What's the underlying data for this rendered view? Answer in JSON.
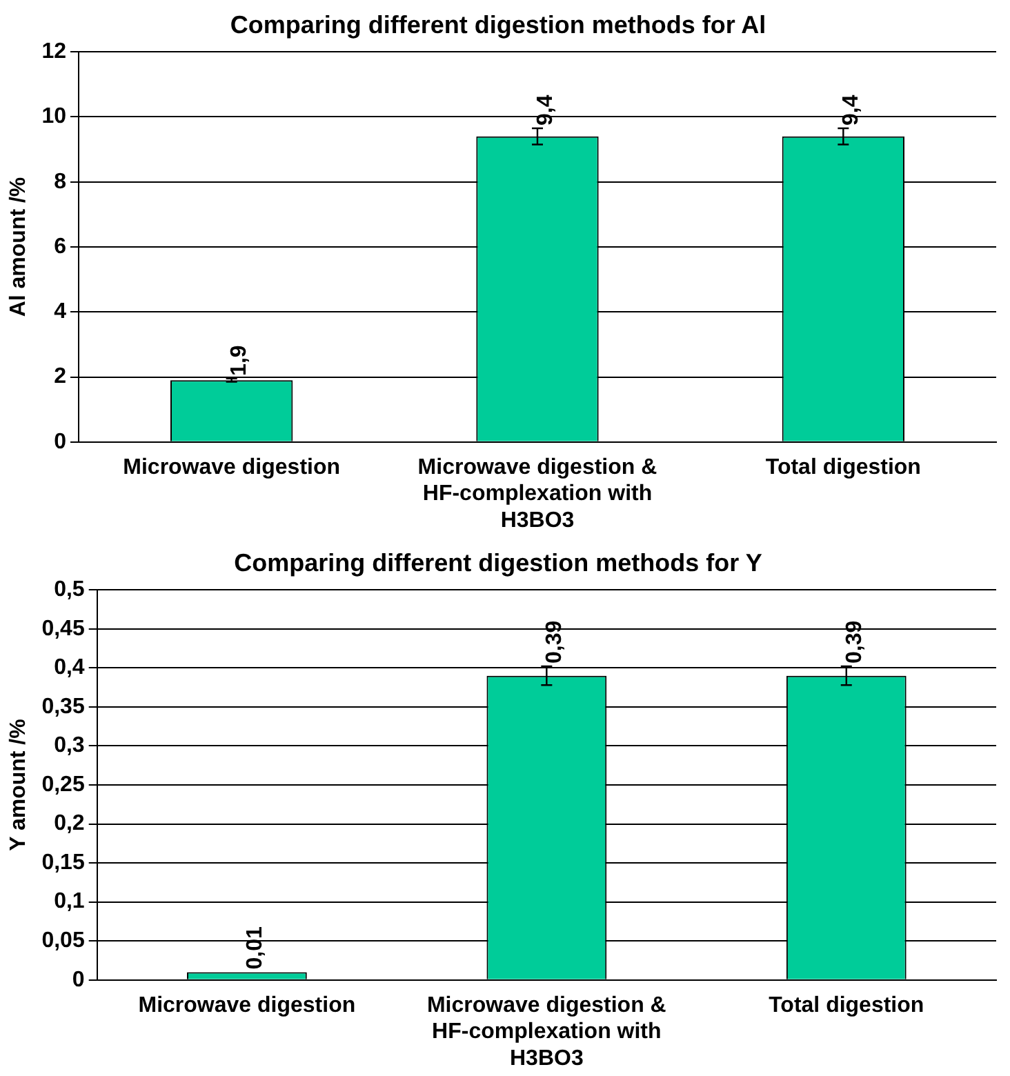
{
  "chart_data": [
    {
      "type": "bar",
      "title": "Comparing different digestion methods for Al",
      "ylabel": "Al amount /%",
      "categories": [
        "Microwave digestion",
        "Microwave digestion & HF-complexation with H3BO3",
        "Total digestion"
      ],
      "values": [
        1.9,
        9.4,
        9.4
      ],
      "errors": [
        0.05,
        0.25,
        0.25
      ],
      "value_labels": [
        "1,9",
        "9,4",
        "9,4"
      ],
      "color": "#00cc99",
      "ylim": [
        0,
        12
      ],
      "yticks": [
        0,
        2,
        4,
        6,
        8,
        10,
        12
      ],
      "grid": "y"
    },
    {
      "type": "bar",
      "title": "Comparing different digestion methods for Y",
      "ylabel": "Y amount /%",
      "categories": [
        "Microwave digestion",
        "Microwave digestion & HF-complexation with H3BO3",
        "Total digestion"
      ],
      "values": [
        0.01,
        0.39,
        0.39
      ],
      "errors": [
        null,
        0.012,
        0.012
      ],
      "value_labels": [
        "0,01",
        "0,39",
        "0,39"
      ],
      "color": "#00cc99",
      "ylim": [
        0,
        0.5
      ],
      "yticks": [
        0,
        {
          "value": 0.05,
          "label": "0,05"
        },
        {
          "value": 0.1,
          "label": "0,1"
        },
        {
          "value": 0.15,
          "label": "0,15"
        },
        {
          "value": 0.2,
          "label": "0,2"
        },
        {
          "value": 0.25,
          "label": "0,25"
        },
        {
          "value": 0.3,
          "label": "0,3"
        },
        {
          "value": 0.35,
          "label": "0,35"
        },
        {
          "value": 0.4,
          "label": "0,4"
        },
        {
          "value": 0.45,
          "label": "0,45"
        },
        {
          "value": 0.5,
          "label": "0,5"
        }
      ],
      "grid": "y"
    }
  ]
}
